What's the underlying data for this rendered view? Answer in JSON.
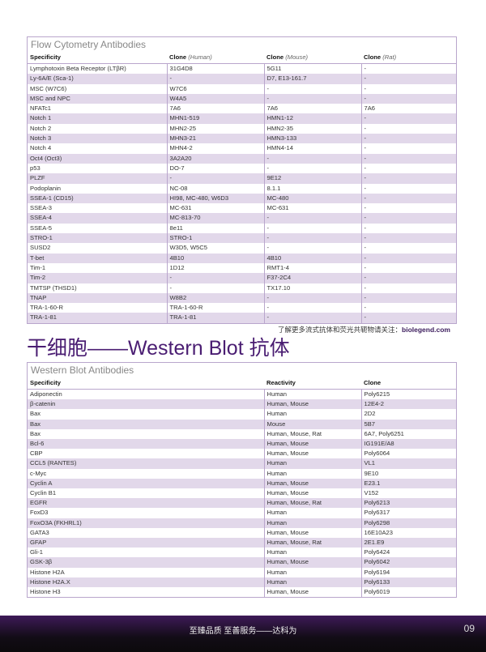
{
  "flow_table": {
    "title": "Flow Cytometry Antibodies",
    "headers": [
      {
        "main": "Specificity",
        "sub": ""
      },
      {
        "main": "Clone",
        "sub": "(Human)"
      },
      {
        "main": "Clone",
        "sub": "(Mouse)"
      },
      {
        "main": "Clone",
        "sub": "(Rat)"
      }
    ],
    "rows": [
      [
        "Lymphotoxin Beta Receptor (LTβR)",
        "31G4D8",
        "5G11",
        "-"
      ],
      [
        "Ly-6A/E (Sca-1)",
        "-",
        "D7, E13-161.7",
        "-"
      ],
      [
        "MSC (W7C6)",
        "W7C6",
        "-",
        "-"
      ],
      [
        "MSC and NPC",
        "W4A5",
        "-",
        "-"
      ],
      [
        "NFATc1",
        "7A6",
        "7A6",
        "7A6"
      ],
      [
        "Notch 1",
        "MHN1-519",
        "HMN1-12",
        "-"
      ],
      [
        "Notch 2",
        "MHN2-25",
        "HMN2-35",
        "-"
      ],
      [
        "Notch 3",
        "MHN3-21",
        "HMN3-133",
        "-"
      ],
      [
        "Notch 4",
        "MHN4-2",
        "HMN4-14",
        "-"
      ],
      [
        "Oct4 (Oct3)",
        "3A2A20",
        "-",
        "-"
      ],
      [
        "p53",
        "DO-7",
        "-",
        "-"
      ],
      [
        "PLZF",
        "-",
        "9E12",
        "-"
      ],
      [
        "Podoplanin",
        "NC-08",
        "8.1.1",
        "-"
      ],
      [
        "SSEA-1 (CD15)",
        "HI98, MC-480, W6D3",
        "MC-480",
        "-"
      ],
      [
        "SSEA-3",
        "MC-631",
        "MC-631",
        "-"
      ],
      [
        "SSEA-4",
        "MC-813-70",
        "-",
        "-"
      ],
      [
        "SSEA-5",
        "8e11",
        "-",
        "-"
      ],
      [
        "STRO-1",
        "STRO-1",
        "-",
        "-"
      ],
      [
        "SUSD2",
        "W3D5, W5C5",
        "-",
        "-"
      ],
      [
        "T-bet",
        "4B10",
        "4B10",
        "-"
      ],
      [
        "Tim-1",
        "1D12",
        "RMT1-4",
        "-"
      ],
      [
        "Tim-2",
        "-",
        "F37-2C4",
        "-"
      ],
      [
        "TMTSP (THSD1)",
        "-",
        "TX17.10",
        "-"
      ],
      [
        "TNAP",
        "W8B2",
        "-",
        "-"
      ],
      [
        "TRA-1-60-R",
        "TRA-1-60-R",
        "-",
        "-"
      ],
      [
        "TRA-1-81",
        "TRA-1-81",
        "-",
        "-"
      ]
    ]
  },
  "note": {
    "text": "了解更多流式抗体和荧光共轭物请关注：",
    "link": "biolegend.com"
  },
  "heading": "干细胞——Western Blot 抗体",
  "wb_table": {
    "title": "Western Blot Antibodies",
    "headers": [
      "Specificity",
      "Reactivity",
      "Clone"
    ],
    "rows": [
      [
        "Adiponectin",
        "Human",
        "Poly6215"
      ],
      [
        "β-catenin",
        "Human, Mouse",
        "12E4-2"
      ],
      [
        "Bax",
        "Human",
        "2D2"
      ],
      [
        "Bax",
        "Mouse",
        "5B7"
      ],
      [
        "Bax",
        "Human, Mouse, Rat",
        "6A7, Poly6251"
      ],
      [
        "Bcl-6",
        "Human, Mouse",
        "IG191E/A8"
      ],
      [
        "CBP",
        "Human, Mouse",
        "Poly6064"
      ],
      [
        "CCL5 (RANTES)",
        "Human",
        "VL1"
      ],
      [
        "c-Myc",
        "Human",
        "9E10"
      ],
      [
        "Cyclin A",
        "Human, Mouse",
        "E23.1"
      ],
      [
        "Cyclin B1",
        "Human, Mouse",
        "V152"
      ],
      [
        "EGFR",
        "Human, Mouse, Rat",
        "Poly6213"
      ],
      [
        "FoxD3",
        "Human",
        "Poly6317"
      ],
      [
        "FoxO3A (FKHRL1)",
        "Human",
        "Poly6298"
      ],
      [
        "GATA3",
        "Human, Mouse",
        "16E10A23"
      ],
      [
        "GFAP",
        "Human, Mouse, Rat",
        "2E1.E9"
      ],
      [
        "Gli-1",
        "Human",
        "Poly6424"
      ],
      [
        "GSK-3β",
        "Human, Mouse",
        "Poly6042"
      ],
      [
        "Histone H2A",
        "Human",
        "Poly6194"
      ],
      [
        "Histone H2A.X",
        "Human",
        "Poly6133"
      ],
      [
        "Histone H3",
        "Human, Mouse",
        "Poly6019"
      ]
    ]
  },
  "footer": {
    "text": "至臻品质 至善服务——达科为",
    "page": "09"
  },
  "colors": {
    "accent": "#4a1d72",
    "stripe": "#e2d8ea",
    "border": "#b9a6cc"
  }
}
